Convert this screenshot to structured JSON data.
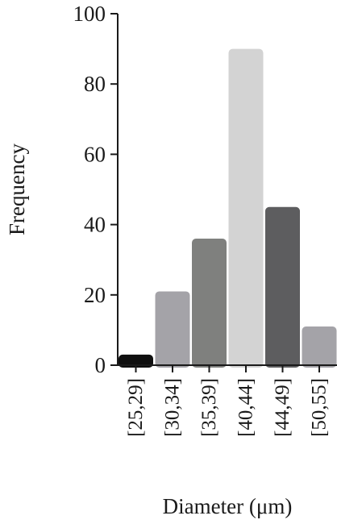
{
  "chart_data": {
    "type": "bar",
    "categories": [
      "[25,29]",
      "[30,34]",
      "[35,39]",
      "[40,44]",
      "[44,49]",
      "[50,55]"
    ],
    "values": [
      3,
      21,
      36,
      90,
      45,
      11
    ],
    "colors": [
      "#0f0f0f",
      "#a4a3a8",
      "#7f807e",
      "#d3d3d3",
      "#5d5d5f",
      "#a4a3a8"
    ],
    "xlabel": "Diameter (μm)",
    "ylabel": "Frequency",
    "ylim": [
      0,
      100
    ],
    "yticks": [
      0,
      20,
      40,
      60,
      80,
      100
    ],
    "grid": false,
    "legend": "none"
  }
}
